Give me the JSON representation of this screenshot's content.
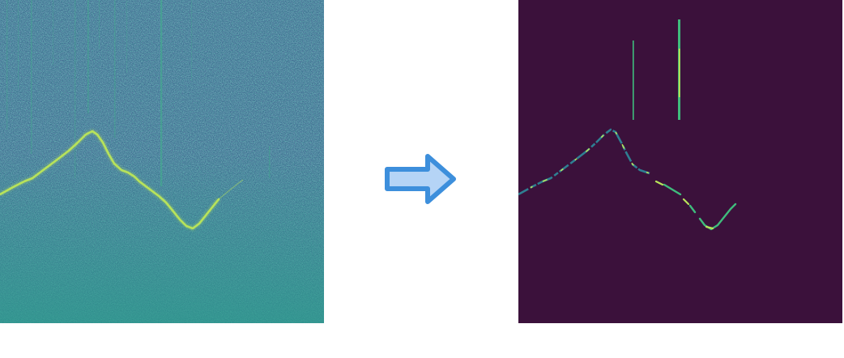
{
  "left_panel": {
    "image": "noisy-spectrogram",
    "colors": {
      "background": "#3a6f8e",
      "noise_light": "#2f9a8a",
      "noise_dark": "#36467f",
      "low_band": "#2b9b8c",
      "contour": "#b8e35a",
      "stripe": "#3fb08a"
    }
  },
  "arrow": {
    "icon": "right-arrow-icon",
    "fill": "#b5d4f6",
    "stroke": "#3d8fdc"
  },
  "right_panel": {
    "image": "denoised-spectrogram",
    "colors": {
      "background": "#3b113b",
      "contour_a": "#3fbc7c",
      "contour_b": "#2f7f92",
      "contour_c": "#b8e35a",
      "spike": "#d6e04a"
    }
  }
}
